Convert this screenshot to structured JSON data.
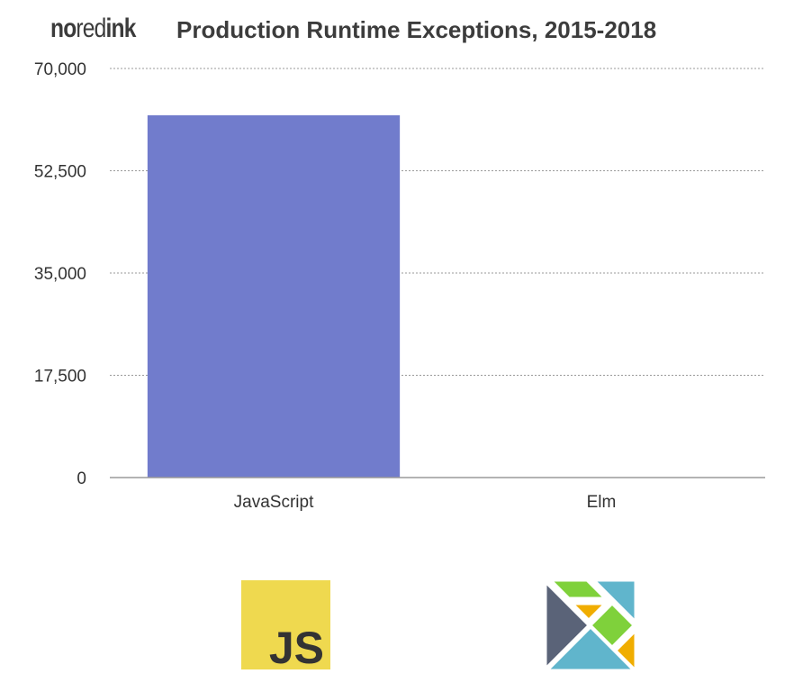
{
  "header": {
    "brand_part1": "no",
    "brand_part2": "red",
    "brand_part3": "ink",
    "title": "Production Runtime Exceptions, 2015-2018"
  },
  "chart_data": {
    "type": "bar",
    "title": "Production Runtime Exceptions, 2015-2018",
    "xlabel": "",
    "ylabel": "",
    "categories": [
      "JavaScript",
      "Elm"
    ],
    "values": [
      62000,
      0
    ],
    "ylim": [
      0,
      70000
    ],
    "yticks": [
      0,
      17500,
      35000,
      52500,
      70000
    ],
    "ytick_labels": [
      "0",
      "17,500",
      "35,000",
      "52,500",
      "70,000"
    ],
    "grid": true,
    "bar_color": "#717ccc"
  },
  "logos": {
    "js_text": "JS",
    "js_bg": "#efd94f",
    "js_fg": "#333333",
    "elm_colors": [
      "#5a6378",
      "#60b5cc",
      "#7fd13b",
      "#f0ad00"
    ]
  }
}
